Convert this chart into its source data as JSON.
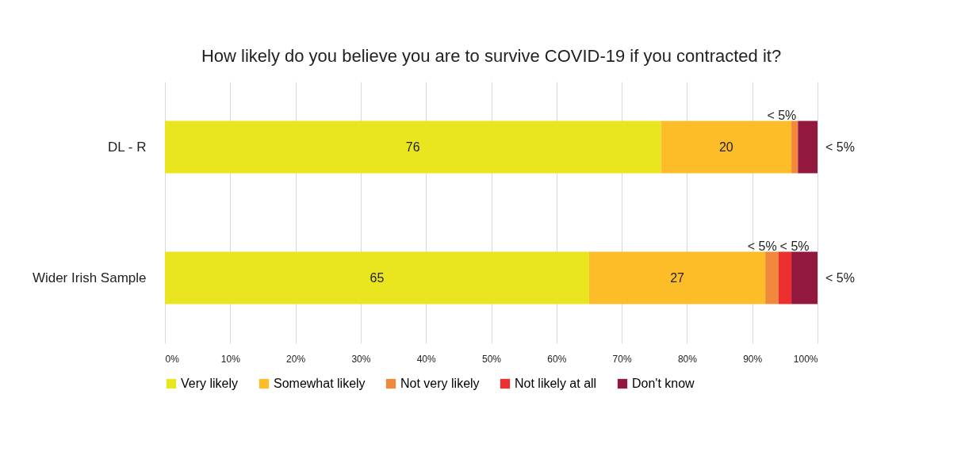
{
  "chart_data": {
    "type": "bar",
    "orientation": "horizontal",
    "stacked": true,
    "title": "How likely do you believe you are to survive COVID-19 if you contracted it?",
    "categories": [
      "DL - R",
      "Wider Irish Sample"
    ],
    "series": [
      {
        "name": "Very likely",
        "color": "#e9e51f",
        "values": [
          76,
          65
        ],
        "value_labels": [
          "76",
          "65"
        ]
      },
      {
        "name": "Somewhat likely",
        "color": "#fdbd28",
        "values": [
          20,
          27
        ],
        "value_labels": [
          "20",
          "27"
        ]
      },
      {
        "name": "Not very likely",
        "color": "#f0893b",
        "values": [
          1,
          2
        ],
        "value_labels": [
          "< 5%",
          "< 5%"
        ]
      },
      {
        "name": "Not likely at all",
        "color": "#ee2f2f",
        "values": [
          0,
          2
        ],
        "value_labels": [
          null,
          "< 5%"
        ]
      },
      {
        "name": "Don't know",
        "color": "#92183e",
        "values": [
          3,
          4
        ],
        "value_labels": [
          "< 5%",
          "< 5%"
        ]
      }
    ],
    "xlim": [
      0,
      100
    ],
    "xticks": [
      {
        "value": 0,
        "label": "0%"
      },
      {
        "value": 10,
        "label": "10%"
      },
      {
        "value": 20,
        "label": "20%"
      },
      {
        "value": 30,
        "label": "30%"
      },
      {
        "value": 40,
        "label": "40%"
      },
      {
        "value": 50,
        "label": "50%"
      },
      {
        "value": 60,
        "label": "60%"
      },
      {
        "value": 70,
        "label": "70%"
      },
      {
        "value": 80,
        "label": "80%"
      },
      {
        "value": 90,
        "label": "90%"
      },
      {
        "value": 100,
        "label": "100%"
      }
    ],
    "grid": "x",
    "legend": "bottom"
  }
}
